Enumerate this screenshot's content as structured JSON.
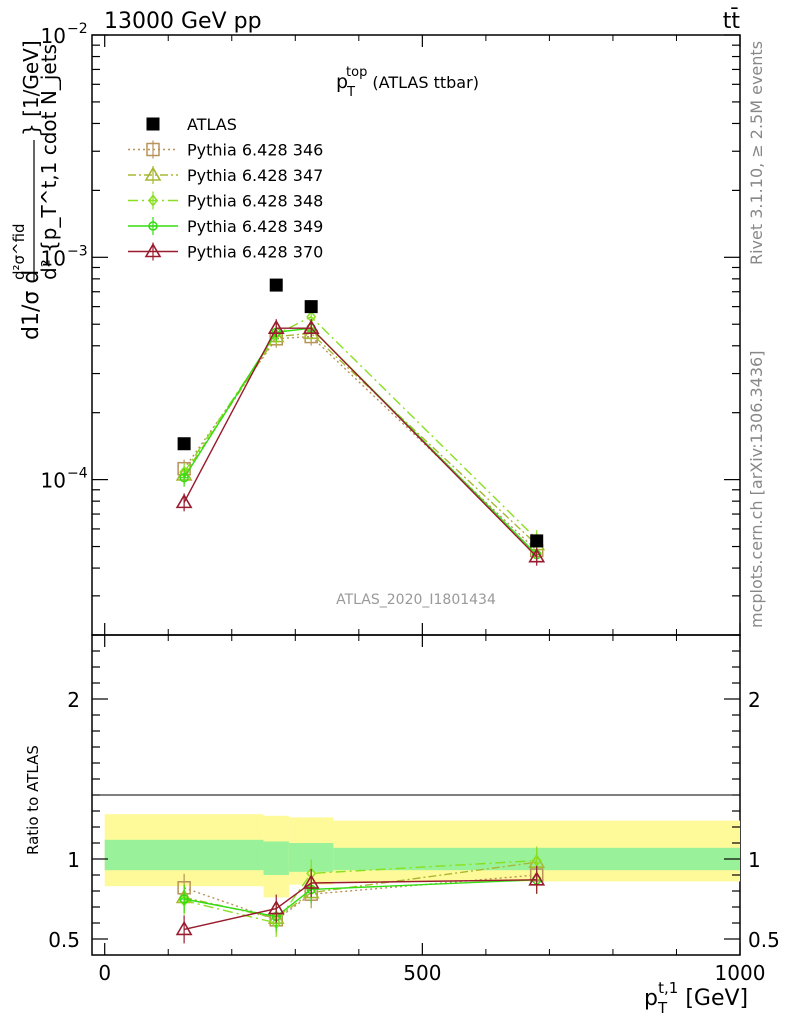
{
  "header": {
    "left": "13000 GeV pp",
    "right": "tt̄"
  },
  "side_labels": {
    "rivet": "Rivet 3.1.10, ≥ 2.5M events",
    "mcplots": "mcplots.cern.ch [arXiv:1306.3436]"
  },
  "chart_data": {
    "type": "line",
    "title": {
      "base": "p",
      "sub": "T",
      "sup": "top",
      "suffix": " (ATLAS ttbar)"
    },
    "analysis_label": "ATLAS_2020_I1801434",
    "x": [
      125,
      270,
      325,
      680
    ],
    "xlim": [
      -20,
      1000
    ],
    "x_ticks": [
      0,
      500,
      1000
    ],
    "x_tick_labels": [
      "0",
      "500",
      "1000"
    ],
    "xlabel": {
      "base": "p",
      "sub": "T",
      "sup": "t,1",
      "suffix": " [GeV]"
    },
    "ylabel": {
      "main": "d²σ^fid / d²{p_T^t,1 cdot N_jets}",
      "prefix": "d1/σ d",
      "numerator": "d²σ^fid",
      "denominator": "d² {p_T^t,1 cdot N_jets",
      "units": "} [1/GeV]"
    },
    "y_scale": "log",
    "ylim": [
      2e-05,
      0.01
    ],
    "y_ticks": [
      0.0001,
      0.001,
      0.01
    ],
    "y_tick_labels": [
      {
        "base": "10",
        "exp": "−4"
      },
      {
        "base": "10",
        "exp": "−3"
      },
      {
        "base": "10",
        "exp": "−2"
      }
    ],
    "legend_position": "top-left",
    "reference": {
      "name": "ATLAS",
      "color": "#000000",
      "values": [
        0.000145,
        0.00075,
        0.0006,
        5.3e-05
      ]
    },
    "series": [
      {
        "name": "Pythia 6.428 346",
        "color": "#b8925a",
        "dash": "2,3",
        "marker": "square",
        "values": [
          0.000112,
          0.00043,
          0.00044,
          4.8e-05
        ],
        "ratio": [
          0.82,
          0.62,
          0.78,
          0.9
        ]
      },
      {
        "name": "Pythia 6.428 347",
        "color": "#a8b832",
        "dash": "8,3,2,3",
        "marker": "triangle",
        "values": [
          0.000105,
          0.00044,
          0.000455,
          5.1e-05
        ],
        "ratio": [
          0.76,
          0.63,
          0.79,
          0.98
        ]
      },
      {
        "name": "Pythia 6.428 348",
        "color": "#88e020",
        "dash": "10,4,2,4",
        "marker": "diamond",
        "values": [
          0.000108,
          0.00045,
          0.00054,
          5.4e-05
        ],
        "ratio": [
          0.74,
          0.6,
          0.91,
          0.99
        ]
      },
      {
        "name": "Pythia 6.428 349",
        "color": "#33dd11",
        "dash": "",
        "marker": "circle",
        "values": [
          0.000102,
          0.00046,
          0.00048,
          4.6e-05
        ],
        "ratio": [
          0.75,
          0.64,
          0.81,
          0.87
        ]
      },
      {
        "name": "Pythia 6.428 370",
        "color": "#991b2e",
        "dash": "",
        "marker": "triangle-open",
        "values": [
          7.9e-05,
          0.00048,
          0.00048,
          4.5e-05
        ],
        "ratio": [
          0.56,
          0.69,
          0.85,
          0.87
        ]
      }
    ],
    "ratio_panel": {
      "ylabel": "Ratio to ATLAS",
      "ylim": [
        0.4,
        2.4
      ],
      "y_ticks": [
        0.5,
        1,
        2
      ],
      "y_tick_labels": [
        "0.5",
        "1",
        "2"
      ],
      "bins": [
        {
          "x0": 0,
          "x1": 250,
          "inner": [
            0.93,
            1.12
          ],
          "outer": [
            0.83,
            1.28
          ]
        },
        {
          "x0": 250,
          "x1": 290,
          "inner": [
            0.9,
            1.11
          ],
          "outer": [
            0.76,
            1.27
          ]
        },
        {
          "x0": 290,
          "x1": 360,
          "inner": [
            0.92,
            1.1
          ],
          "outer": [
            0.84,
            1.26
          ]
        },
        {
          "x0": 360,
          "x1": 1000,
          "inner": [
            0.93,
            1.07
          ],
          "outer": [
            0.86,
            1.24
          ]
        }
      ],
      "band_colors": {
        "inner": "#99f299",
        "outer": "#fffa99"
      }
    }
  }
}
